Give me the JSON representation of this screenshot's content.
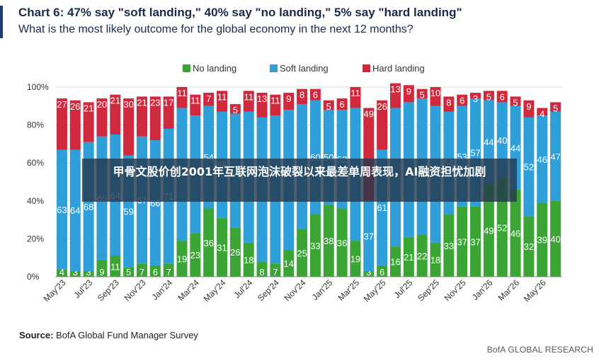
{
  "header": {
    "title": "Chart 6: 47% say \"soft landing,\" 40% say \"no landing,\" 5% say \"hard landing\"",
    "subtitle": "What is the most likely outcome for the global economy in the next 12 months?"
  },
  "overlay_banner": {
    "text": "甲骨文股价创2001年互联网泡沫破裂以来最差单周表现，AI融资担忧加剧"
  },
  "footer": {
    "source_label": "Source:",
    "source_text": "BofA Global Fund Manager Survey",
    "brand": "BofA GLOBAL RESEARCH"
  },
  "colors": {
    "no_landing": "#3aa535",
    "soft_landing": "#2f9fda",
    "hard_landing": "#d0283c",
    "axis_text": "#333333",
    "grid": "#d9d9d9"
  },
  "chart_data": {
    "type": "bar",
    "stacked": true,
    "title": "Chart 6: 47% say \"soft landing,\" 40% say \"no landing,\" 5% say \"hard landing\"",
    "subtitle": "What is the most likely outcome for the global economy in the next 12 months?",
    "ylim": [
      0,
      100
    ],
    "yticks": [
      "0%",
      "20%",
      "40%",
      "60%",
      "80%",
      "100%"
    ],
    "grid": true,
    "legend_position": "top-center",
    "x_tick_labels": [
      "May'23",
      "Jul'23",
      "Sep'23",
      "Nov'23",
      "Jan'24",
      "Mar'24",
      "May'24",
      "Jul'24",
      "Sep'24",
      "Nov'24",
      "Jan'25",
      "Mar'25",
      "May'25",
      "Jul'25",
      "Sep'25",
      "Nov'25",
      "Jan'26",
      "Mar'26",
      "May'26"
    ],
    "series": [
      {
        "name": "No landing",
        "color": "#3aa535",
        "values": [
          4,
          3,
          3,
          9,
          11,
          5,
          7,
          6,
          7,
          19,
          23,
          36,
          31,
          26,
          18,
          8,
          7,
          14,
          25,
          33,
          38,
          36,
          19,
          3,
          6,
          16,
          21,
          22,
          18,
          33,
          37,
          37,
          49,
          52,
          46,
          32,
          39,
          40
        ]
      },
      {
        "name": "Soft landing",
        "color": "#2f9fda",
        "values": [
          63,
          64,
          68,
          65,
          64,
          59,
          67,
          66,
          71,
          70,
          62,
          54,
          56,
          60,
          69,
          76,
          78,
          74,
          66,
          60,
          50,
          52,
          70,
          37,
          61,
          73,
          71,
          72,
          72,
          54,
          53,
          57,
          44,
          40,
          44,
          52,
          46,
          47
        ]
      },
      {
        "name": "Hard landing",
        "color": "#d0283c",
        "values": [
          27,
          26,
          21,
          20,
          21,
          30,
          21,
          23,
          17,
          11,
          11,
          7,
          11,
          5,
          11,
          13,
          11,
          9,
          8,
          6,
          5,
          6,
          11,
          49,
          26,
          13,
          9,
          5,
          10,
          8,
          6,
          3,
          5,
          6,
          5,
          9,
          4,
          5
        ]
      }
    ],
    "data_labels": {
      "no_landing": [
        "4",
        "3",
        "3",
        "9",
        "11",
        "5",
        "7",
        "6",
        "7",
        "19",
        "23",
        "36",
        "31",
        "26",
        "18",
        "8",
        "7",
        "14",
        "25",
        "33",
        "38",
        "36",
        "19",
        "3",
        "6",
        "16",
        "21",
        "22",
        "18",
        "33",
        "37",
        "37",
        "49",
        "52",
        "46",
        "32",
        "39",
        "40"
      ],
      "soft_landing": [
        "63",
        "64",
        "68",
        "65",
        "64",
        "59",
        "67",
        "66",
        "71",
        "",
        "",
        "54",
        "56",
        "",
        "",
        "",
        "",
        "",
        "",
        "60",
        "50",
        "52",
        "",
        "37",
        "61",
        "",
        "",
        "",
        "",
        "54",
        "53",
        "57",
        "44",
        "40",
        "44",
        "52",
        "46",
        "47"
      ],
      "hard_landing": [
        "27",
        "26",
        "21",
        "20",
        "21",
        "30",
        "21",
        "23",
        "17",
        "11",
        "11",
        "7",
        "11",
        "5",
        "11",
        "13",
        "11",
        "9",
        "8",
        "6",
        "5",
        "6",
        "11",
        "49",
        "26",
        "13",
        "9",
        "5",
        "10",
        "8",
        "6",
        "3",
        "5",
        "6",
        "5",
        "9",
        "4",
        "5"
      ]
    }
  }
}
